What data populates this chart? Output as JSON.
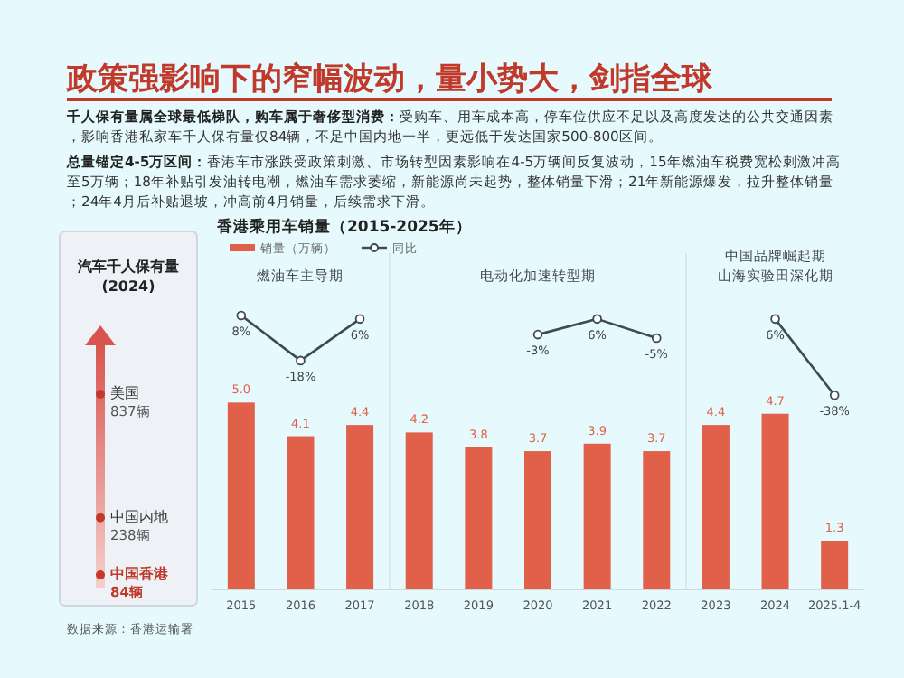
{
  "chart_data": [
    {
      "type": "other",
      "title": "政策强影响下的窄幅波动，量小势大，剑指全球",
      "annotations": [
        "千人保有量属全球最低梯队，购车属于奢侈型消费：受购车、用车成本高，停车位供应不足以及高度发达的公共交通因素，影响香港私家车千人保有量仅84辆，不足中国内地一半，更远低于发达国家500-800区间。",
        "总量锚定4-5万区间：香港车市涨跌受政策刺激、市场转型因素影响在4-5万辆间反复波动，15年燃油车税费宽松刺激冲高至5万辆；18年补贴引发油转电潮，燃油车需求萎缩，新能源尚未起势，整体销量下滑；21年新能源爆发，拉升整体销量；24年4月后补贴退坡，冲高前4月销量，后续需求下滑。"
      ]
    },
    {
      "type": "other",
      "title": "汽车千人保有量",
      "subtitle": "(2024)",
      "categories": [
        "美国",
        "中国内地",
        "中国香港"
      ],
      "values": [
        837,
        238,
        84
      ],
      "value_labels": [
        "837辆",
        "238辆",
        "84辆"
      ]
    },
    {
      "type": "bar",
      "title": "香港乘用车销量（2015-2025年）",
      "categories": [
        "2015",
        "2016",
        "2017",
        "2018",
        "2019",
        "2020",
        "2021",
        "2022",
        "2023",
        "2024",
        "2025.1-4"
      ],
      "series": [
        {
          "name": "销量（万辆）",
          "type": "bar",
          "color": "#e0604a",
          "values": [
            5.0,
            4.1,
            4.4,
            4.2,
            3.8,
            3.7,
            3.9,
            3.7,
            4.4,
            4.7,
            1.3
          ],
          "value_labels": [
            "5.0",
            "4.1",
            "4.4",
            "4.2",
            "3.8",
            "3.7",
            "3.9",
            "3.7",
            "4.4",
            "4.7",
            "1.3"
          ]
        },
        {
          "name": "同比",
          "type": "line",
          "axis": "y2",
          "color": "#3d4a55",
          "marker": "circle",
          "values": [
            8,
            -18,
            6,
            null,
            null,
            -3,
            6,
            -5,
            null,
            6,
            -38
          ],
          "value_labels": [
            "8%",
            "-18%",
            "6%",
            null,
            null,
            "-3%",
            "6%",
            "-5%",
            null,
            "6%",
            "-38%"
          ]
        }
      ],
      "ylim": [
        0,
        9
      ],
      "y2lim": [
        -150,
        44
      ],
      "legend": "top left",
      "annotations": [
        "燃油车主导期",
        "电动化加速转型期",
        "中国品牌崛起期",
        "山海实验田深化期",
        "数据来源：香港运输署"
      ]
    }
  ]
}
